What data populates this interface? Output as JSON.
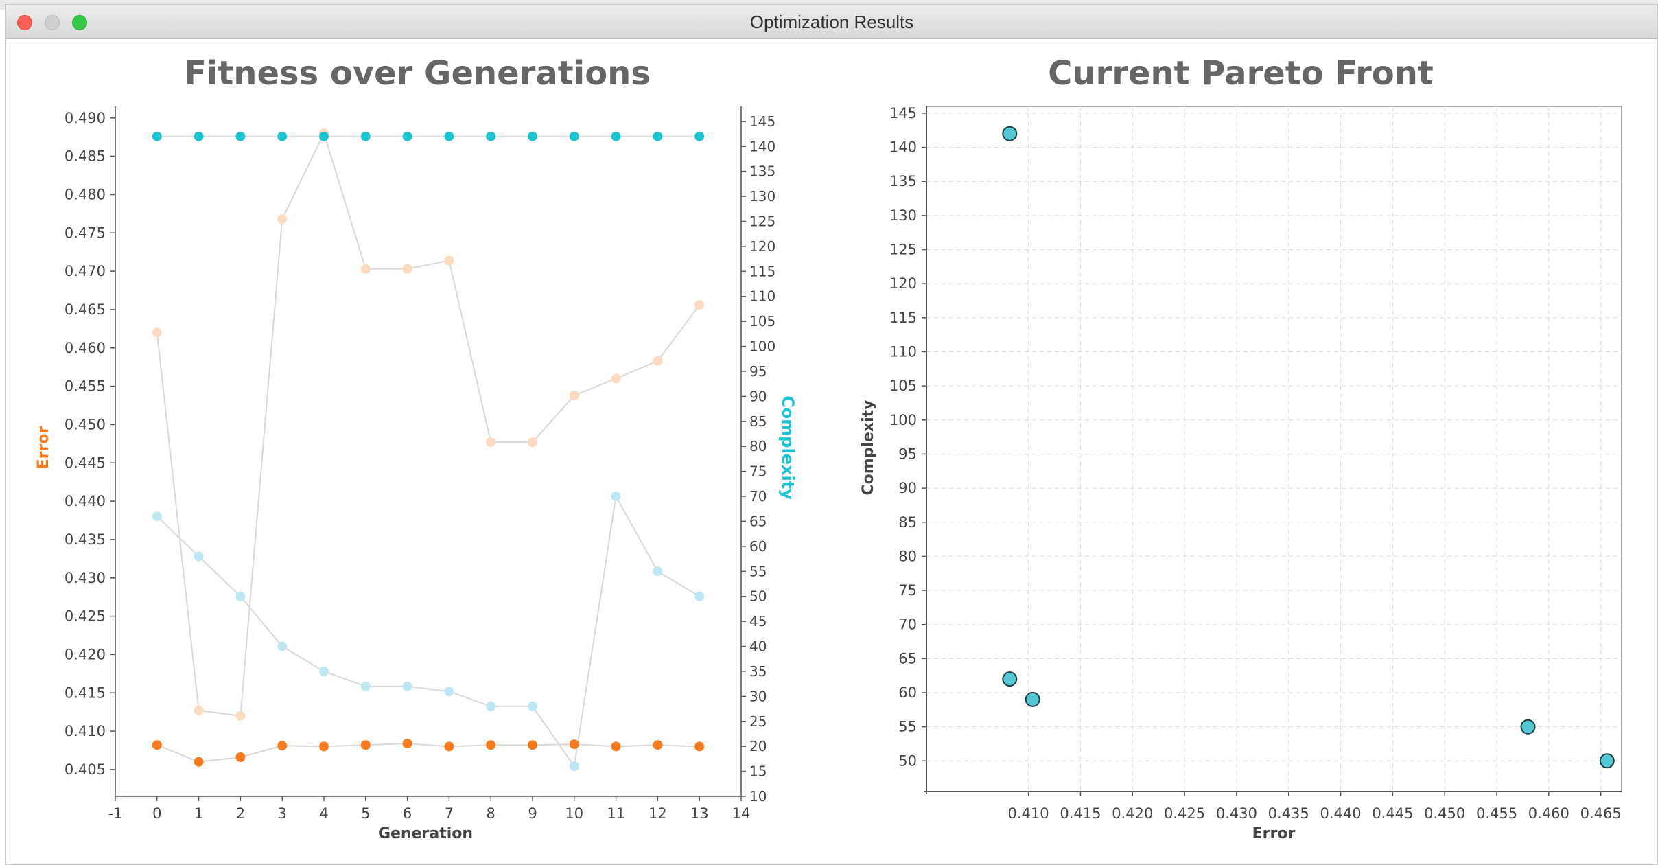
{
  "window": {
    "title": "Optimization Results"
  },
  "colors": {
    "error": "#f47b20",
    "complexity": "#1ec3d2",
    "error_pop": "#fddbc2",
    "complexity_pop": "#bfe6f3",
    "connector": "#d9d9d9",
    "pareto_fill": "#55c9d3"
  },
  "chart_data": [
    {
      "type": "line",
      "title": "Fitness over Generations",
      "xlabel": "Generation",
      "ylabel": "Error",
      "y2label": "Complexity",
      "xlim": [
        -1,
        14
      ],
      "ylim": [
        0.4015,
        0.4915
      ],
      "y2lim": [
        10,
        148
      ],
      "xticks": [
        "-1",
        "0",
        "1",
        "2",
        "3",
        "4",
        "5",
        "6",
        "7",
        "8",
        "9",
        "10",
        "11",
        "12",
        "13",
        "14"
      ],
      "yticks": [
        "0.405",
        "0.410",
        "0.415",
        "0.420",
        "0.425",
        "0.430",
        "0.435",
        "0.440",
        "0.445",
        "0.450",
        "0.455",
        "0.460",
        "0.465",
        "0.470",
        "0.475",
        "0.480",
        "0.485",
        "0.490"
      ],
      "y2ticks": [
        "10",
        "15",
        "20",
        "25",
        "30",
        "35",
        "40",
        "45",
        "50",
        "55",
        "60",
        "65",
        "70",
        "75",
        "80",
        "85",
        "90",
        "95",
        "100",
        "105",
        "110",
        "115",
        "120",
        "125",
        "130",
        "135",
        "140",
        "145"
      ],
      "x": [
        0,
        1,
        2,
        3,
        4,
        5,
        6,
        7,
        8,
        9,
        10,
        11,
        12,
        13
      ],
      "series": [
        {
          "name": "Error",
          "axis": "left",
          "marker": "filled",
          "values": [
            0.4082,
            0.406,
            0.4066,
            0.4081,
            0.408,
            0.4082,
            0.4084,
            0.408,
            0.4082,
            0.4082,
            0.4083,
            0.408,
            0.4082,
            0.408
          ]
        },
        {
          "name": "Complexity",
          "axis": "right",
          "marker": "filled",
          "values": [
            142,
            142,
            142,
            142,
            142,
            142,
            142,
            142,
            142,
            142,
            142,
            142,
            142,
            142
          ]
        },
        {
          "axis": "left",
          "marker": "faded",
          "values": [
            0.462,
            0.4127,
            0.412,
            0.4768,
            0.488,
            0.4703,
            0.4703,
            0.4714,
            0.4477,
            0.4477,
            0.4538,
            0.456,
            0.4583,
            0.4656
          ]
        },
        {
          "axis": "right",
          "marker": "faded",
          "values": [
            66,
            58,
            50,
            40,
            35,
            32,
            32,
            31,
            28,
            28,
            16,
            70,
            55,
            50
          ]
        }
      ]
    },
    {
      "type": "scatter",
      "title": "Current Pareto Front",
      "xlabel": "Error",
      "ylabel": "Complexity",
      "xlim": [
        0.4002,
        0.467
      ],
      "ylim": [
        45.5,
        146
      ],
      "grid": true,
      "xticks": [
        "0.410",
        "0.415",
        "0.420",
        "0.425",
        "0.430",
        "0.435",
        "0.440",
        "0.445",
        "0.450",
        "0.455",
        "0.460",
        "0.465"
      ],
      "yticks": [
        "50",
        "55",
        "60",
        "65",
        "70",
        "75",
        "80",
        "85",
        "90",
        "95",
        "100",
        "105",
        "110",
        "115",
        "120",
        "125",
        "130",
        "135",
        "140",
        "145"
      ],
      "points": [
        {
          "x": 0.4082,
          "y": 142
        },
        {
          "x": 0.4082,
          "y": 62
        },
        {
          "x": 0.4104,
          "y": 59
        },
        {
          "x": 0.458,
          "y": 55
        },
        {
          "x": 0.4656,
          "y": 50
        }
      ]
    }
  ]
}
